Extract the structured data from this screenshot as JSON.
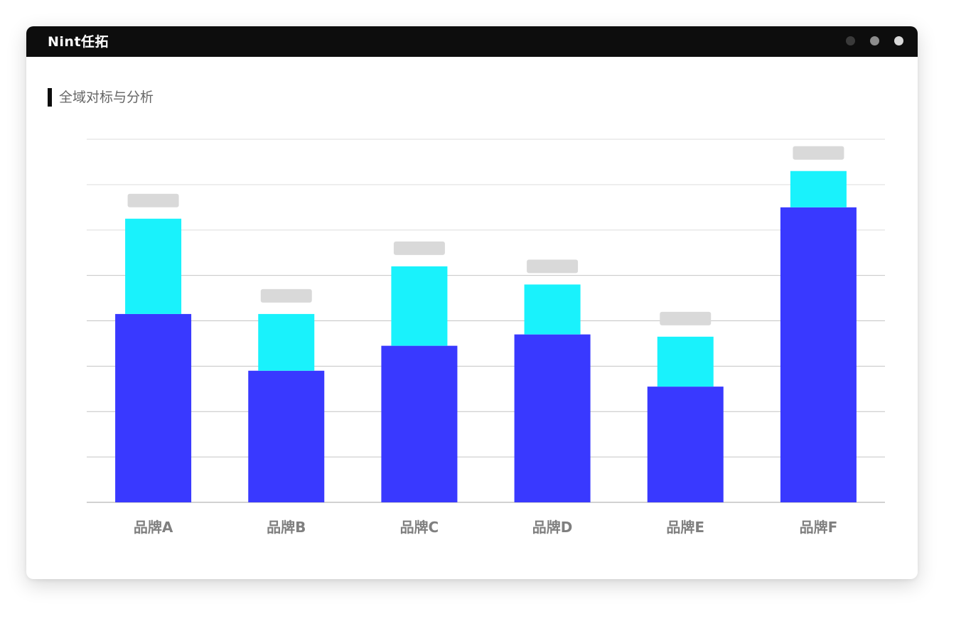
{
  "app": {
    "brand": "Nint任拓"
  },
  "section": {
    "title": "全域对标与分析"
  },
  "colors": {
    "titlebar": "#0d0d0d",
    "base_series": "#3939ff",
    "top_series": "#19f2fc",
    "label_placeholder": "#d9d9d9",
    "gridline": "#c8c8c8"
  },
  "chart_data": {
    "type": "bar",
    "stacked": true,
    "categories": [
      "品牌A",
      "品牌B",
      "品牌C",
      "品牌D",
      "品牌E",
      "品牌F"
    ],
    "series": [
      {
        "values": [
          4.15,
          2.9,
          3.45,
          3.7,
          2.55,
          6.5
        ],
        "color": "#3939ff"
      },
      {
        "values": [
          2.1,
          1.25,
          1.75,
          1.1,
          1.1,
          0.8
        ],
        "color": "#19f2fc"
      }
    ],
    "ylim": [
      0,
      8
    ],
    "grid": true,
    "legend": "none",
    "data_labels": "placeholder"
  }
}
